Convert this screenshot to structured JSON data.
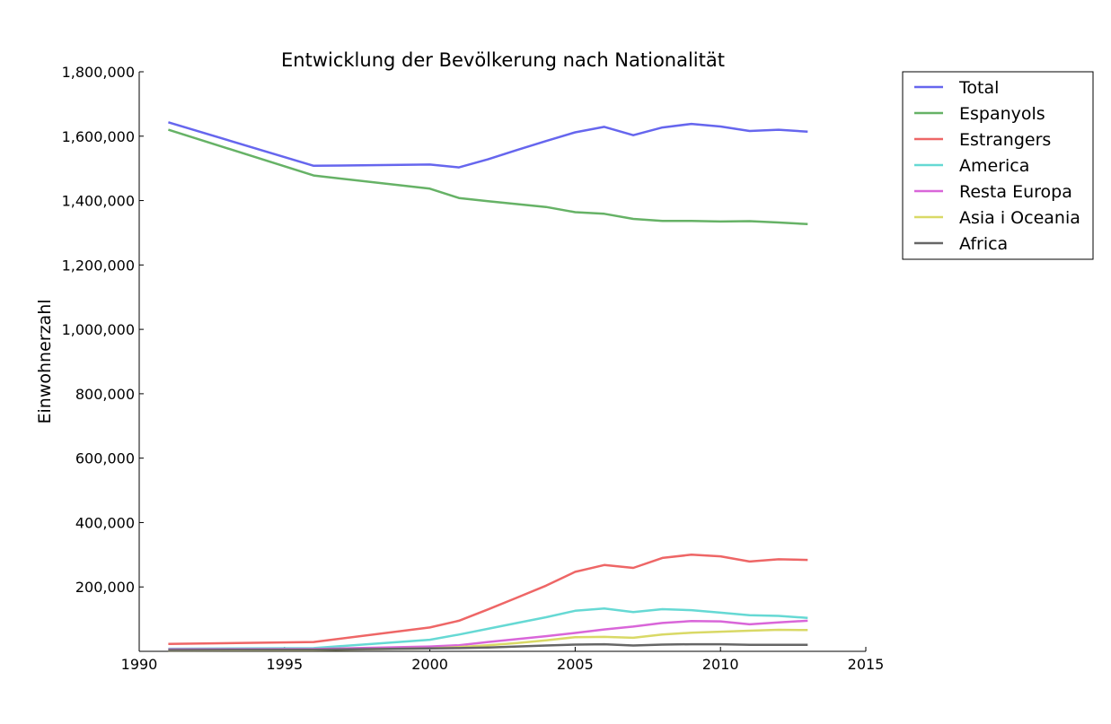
{
  "chart_data": {
    "type": "line",
    "title": "Entwicklung der Bevölkerung nach Nationalität",
    "xlabel": "",
    "ylabel": "Einwohnerzahl",
    "xlim": [
      1990,
      2015
    ],
    "ylim": [
      0,
      1800000
    ],
    "xticks": [
      1990,
      1995,
      2000,
      2005,
      2010,
      2015
    ],
    "xtick_labels": [
      "1990",
      "1995",
      "2000",
      "2005",
      "2010",
      "2015"
    ],
    "yticks": [
      200000,
      400000,
      600000,
      800000,
      1000000,
      1200000,
      1400000,
      1600000,
      1800000
    ],
    "ytick_labels": [
      "200,000",
      "400,000",
      "600,000",
      "800,000",
      "1,000,000",
      "1,200,000",
      "1,400,000",
      "1,600,000",
      "1,800,000"
    ],
    "grid": false,
    "legend_position": "outside-top-right",
    "x": [
      1991,
      1996,
      2000,
      2001,
      2002,
      2003,
      2004,
      2005,
      2006,
      2007,
      2008,
      2009,
      2010,
      2011,
      2012,
      2013
    ],
    "series": [
      {
        "name": "Total",
        "color": "#6666ee",
        "values": [
          1643000,
          1508000,
          1512000,
          1503000,
          1528000,
          1557000,
          1585000,
          1612000,
          1629000,
          1603000,
          1627000,
          1638000,
          1630000,
          1616000,
          1620000,
          1614000
        ]
      },
      {
        "name": "Espanyols",
        "color": "#66b266",
        "values": [
          1620000,
          1478000,
          1437000,
          1408000,
          1398000,
          1389000,
          1380000,
          1364000,
          1359000,
          1343000,
          1337000,
          1337000,
          1335000,
          1336000,
          1332000,
          1327000
        ]
      },
      {
        "name": "Estrangers",
        "color": "#ee6666",
        "values": [
          23000,
          29000,
          74000,
          95000,
          130000,
          167000,
          204000,
          247000,
          268000,
          259000,
          290000,
          300000,
          295000,
          279000,
          286000,
          284000
        ]
      },
      {
        "name": "America",
        "color": "#66d9d4",
        "values": [
          8000,
          10000,
          36000,
          52000,
          70000,
          88000,
          106000,
          126000,
          133000,
          122000,
          131000,
          128000,
          120000,
          112000,
          110000,
          104000
        ]
      },
      {
        "name": "Resta Europa",
        "color": "#d966d9",
        "values": [
          6000,
          7000,
          15000,
          19000,
          29000,
          38000,
          47000,
          57000,
          68000,
          77000,
          88000,
          94000,
          93000,
          84000,
          90000,
          95000
        ]
      },
      {
        "name": "Asia i Oceania",
        "color": "#d9d966",
        "values": [
          3000,
          4000,
          9000,
          13000,
          19000,
          26000,
          34000,
          44000,
          45000,
          42000,
          52000,
          58000,
          61000,
          64000,
          67000,
          66000
        ]
      },
      {
        "name": "Africa",
        "color": "#666666",
        "values": [
          4000,
          5000,
          9000,
          10000,
          12000,
          15000,
          18000,
          21000,
          22000,
          18000,
          21000,
          22000,
          22000,
          20000,
          20000,
          20000
        ]
      }
    ]
  }
}
